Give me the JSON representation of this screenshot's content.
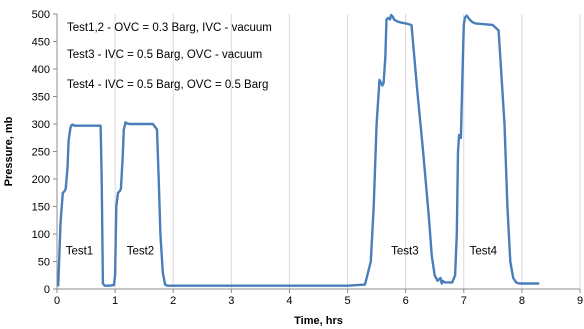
{
  "chart_data": {
    "type": "line",
    "xlabel": "Time, hrs",
    "ylabel": "Pressure, mb",
    "xlim": [
      0,
      9
    ],
    "ylim": [
      0,
      500
    ],
    "x_ticks": [
      "0",
      "1",
      "2",
      "3",
      "4",
      "5",
      "6",
      "7",
      "8",
      "9"
    ],
    "y_ticks": [
      "0",
      "50",
      "100",
      "150",
      "200",
      "250",
      "300",
      "350",
      "400",
      "450",
      "500"
    ],
    "grid": "vertical",
    "line_color": "#4a7ebb",
    "notes": [
      "Test1,2 - OVC = 0.3 Barg, IVC - vacuum",
      "Test3 - IVC = 0.5 Barg, OVC - vacuum",
      "Test4 - IVC = 0.5 Barg, OVC = 0.5 Barg"
    ],
    "annotations": [
      {
        "text": "Test1",
        "x": 0.15,
        "y": 70
      },
      {
        "text": "Test2",
        "x": 1.2,
        "y": 70
      },
      {
        "text": "Test3",
        "x": 5.75,
        "y": 70
      },
      {
        "text": "Test4",
        "x": 7.1,
        "y": 70
      }
    ],
    "series": [
      {
        "x": [
          0.02,
          0.06,
          0.1,
          0.13,
          0.15,
          0.18,
          0.2,
          0.23,
          0.25,
          0.27,
          0.29,
          0.3,
          0.33,
          0.4,
          0.5,
          0.6,
          0.7,
          0.75,
          0.77,
          0.79,
          0.82,
          0.9,
          0.98,
          1.0,
          1.02,
          1.05,
          1.08,
          1.1,
          1.13,
          1.15,
          1.18,
          1.2,
          1.22,
          1.24,
          1.26,
          1.28,
          1.3,
          1.35,
          1.45,
          1.55,
          1.65,
          1.72,
          1.75,
          1.78,
          1.82,
          1.86,
          1.9,
          2.5,
          3.0,
          3.5,
          4.0,
          4.5,
          5.0,
          5.3,
          5.4,
          5.45,
          5.5,
          5.55,
          5.6,
          5.62,
          5.65,
          5.67,
          5.7,
          5.73,
          5.75,
          5.78,
          5.8,
          5.85,
          5.9,
          6.0,
          6.1,
          6.2,
          6.3,
          6.4,
          6.45,
          6.5,
          6.55,
          6.6,
          6.62,
          6.64,
          6.66,
          6.68,
          6.7,
          6.75,
          6.8,
          6.85,
          6.88,
          6.9,
          6.92,
          6.95,
          6.98,
          7.0,
          7.02,
          7.05,
          7.08,
          7.1,
          7.15,
          7.2,
          7.3,
          7.4,
          7.5,
          7.6,
          7.7,
          7.75,
          7.8,
          7.85,
          7.9,
          7.95,
          8.0,
          8.1,
          8.2,
          8.3
        ],
        "y": [
          5,
          120,
          175,
          178,
          182,
          220,
          270,
          293,
          298,
          299,
          298,
          297,
          297,
          297,
          297,
          297,
          297,
          297,
          200,
          10,
          6,
          6,
          7,
          25,
          150,
          175,
          178,
          182,
          240,
          290,
          303,
          301,
          301,
          300,
          300,
          300,
          300,
          300,
          300,
          300,
          300,
          290,
          200,
          100,
          30,
          8,
          6,
          6,
          6,
          6,
          6,
          6,
          6,
          8,
          50,
          150,
          300,
          380,
          370,
          375,
          420,
          490,
          493,
          490,
          498,
          495,
          490,
          487,
          485,
          483,
          480,
          360,
          250,
          130,
          60,
          25,
          15,
          20,
          10,
          15,
          13,
          12,
          12,
          12,
          12,
          25,
          100,
          250,
          280,
          275,
          400,
          480,
          493,
          497,
          493,
          490,
          485,
          483,
          482,
          481,
          480,
          470,
          300,
          150,
          50,
          20,
          12,
          10,
          10,
          10,
          10,
          10
        ]
      }
    ]
  }
}
